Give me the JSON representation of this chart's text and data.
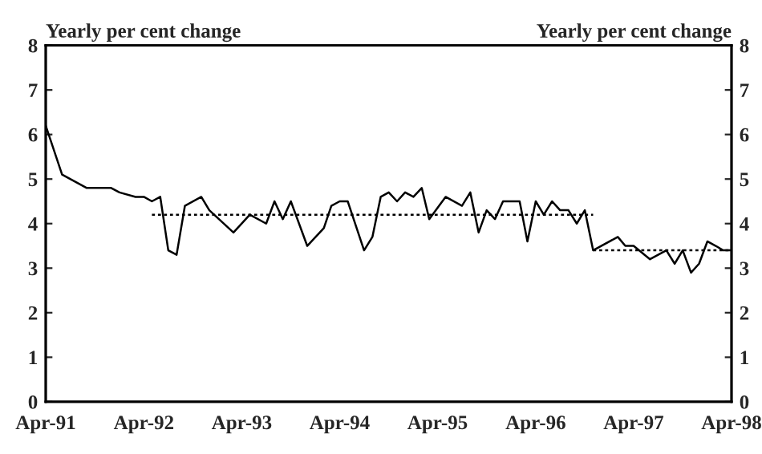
{
  "chart_data": {
    "type": "line",
    "ylabel": "Yearly per cent change",
    "y2label": "Yearly per cent change",
    "xlim": [
      "1991-04",
      "1998-04"
    ],
    "xticks": [
      {
        "value": "1991-04",
        "label": "Apr-91"
      },
      {
        "value": "1992-04",
        "label": "Apr-92"
      },
      {
        "value": "1993-04",
        "label": "Apr-93"
      },
      {
        "value": "1994-04",
        "label": "Apr-94"
      },
      {
        "value": "1995-04",
        "label": "Apr-95"
      },
      {
        "value": "1996-04",
        "label": "Apr-96"
      },
      {
        "value": "1997-04",
        "label": "Apr-97"
      },
      {
        "value": "1998-04",
        "label": "Apr-98"
      }
    ],
    "ylim": [
      0,
      8
    ],
    "yticks": [
      0,
      1,
      2,
      3,
      4,
      5,
      6,
      7,
      8
    ],
    "y2lim": [
      0,
      8
    ],
    "y2ticks": [
      0,
      1,
      2,
      3,
      4,
      5,
      6,
      7,
      8
    ],
    "grid": false,
    "legend": false,
    "marker": "none",
    "series": [
      {
        "color": "#000000",
        "line_style": "solid",
        "x": [
          "1991-04",
          "1991-06",
          "1991-09",
          "1991-12",
          "1992-01",
          "1992-03",
          "1992-04",
          "1992-05",
          "1992-06",
          "1992-07",
          "1992-08",
          "1992-09",
          "1992-11",
          "1992-12",
          "1993-03",
          "1993-05",
          "1993-07",
          "1993-08",
          "1993-09",
          "1993-10",
          "1993-12",
          "1994-02",
          "1994-03",
          "1994-04",
          "1994-05",
          "1994-07",
          "1994-08",
          "1994-09",
          "1994-10",
          "1994-11",
          "1994-12",
          "1995-01",
          "1995-02",
          "1995-03",
          "1995-05",
          "1995-07",
          "1995-08",
          "1995-09",
          "1995-10",
          "1995-11",
          "1995-12",
          "1996-02",
          "1996-03",
          "1996-04",
          "1996-05",
          "1996-06",
          "1996-07",
          "1996-08",
          "1996-09",
          "1996-10",
          "1996-11",
          "1997-02",
          "1997-03",
          "1997-04",
          "1997-06",
          "1997-08",
          "1997-09",
          "1997-10",
          "1997-11",
          "1997-12",
          "1998-01",
          "1998-02",
          "1998-03",
          "1998-04"
        ],
        "values": [
          6.2,
          5.1,
          4.8,
          4.8,
          4.7,
          4.6,
          4.6,
          4.5,
          4.6,
          3.4,
          3.3,
          4.4,
          4.6,
          4.3,
          3.8,
          4.2,
          4.0,
          4.5,
          4.1,
          4.5,
          3.5,
          3.9,
          4.4,
          4.5,
          4.5,
          3.4,
          3.7,
          4.6,
          4.7,
          4.5,
          4.7,
          4.6,
          4.8,
          4.1,
          4.6,
          4.4,
          4.7,
          3.8,
          4.3,
          4.1,
          4.5,
          4.5,
          3.6,
          4.5,
          4.2,
          4.5,
          4.3,
          4.3,
          4.0,
          4.3,
          3.4,
          3.7,
          3.5,
          3.5,
          3.2,
          3.4,
          3.1,
          3.4,
          2.9,
          3.1,
          3.6,
          3.5,
          3.4,
          3.4
        ]
      },
      {
        "color": "#000000",
        "line_style": "dotted",
        "x": [
          "1992-05",
          "1996-11"
        ],
        "values": [
          4.2,
          4.2
        ]
      },
      {
        "color": "#000000",
        "line_style": "dotted",
        "x": [
          "1996-11",
          "1998-04"
        ],
        "values": [
          3.4,
          3.4
        ]
      }
    ]
  }
}
